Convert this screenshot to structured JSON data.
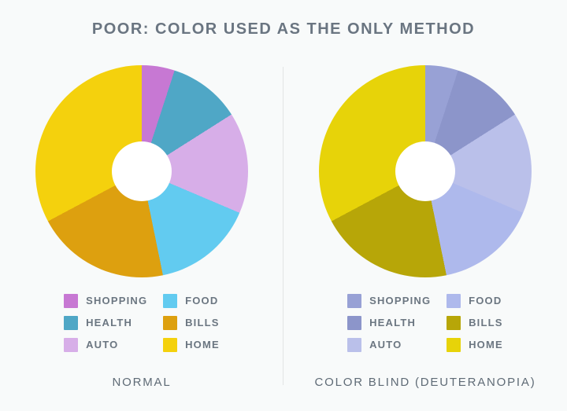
{
  "page": {
    "title": "POOR: COLOR USED AS THE ONLY METHOD",
    "background_color": "#f8fafa",
    "title_color": "#6a7581",
    "divider_color": "#e3e5e5"
  },
  "chart_data": [
    {
      "type": "pie",
      "variant": "donut",
      "caption": "NORMAL",
      "start_angle_deg": 0,
      "direction": "clockwise",
      "categories": [
        "SHOPPING",
        "HEALTH",
        "AUTO",
        "FOOD",
        "BILLS",
        "HOME"
      ],
      "values": [
        5,
        11,
        15.4,
        15.4,
        20.4,
        32.8
      ],
      "unit": "percent",
      "colors": [
        "#c778d3",
        "#4fa7c6",
        "#d7aee8",
        "#62cbf0",
        "#dda00f",
        "#f4d10d"
      ],
      "hole_color": "#ffffff",
      "legend_position": "bottom",
      "legend_columns": [
        [
          "SHOPPING",
          "HEALTH",
          "AUTO"
        ],
        [
          "FOOD",
          "BILLS",
          "HOME"
        ]
      ]
    },
    {
      "type": "pie",
      "variant": "donut",
      "caption": "COLOR BLIND (DEUTERANOPIA)",
      "start_angle_deg": 0,
      "direction": "clockwise",
      "categories": [
        "SHOPPING",
        "HEALTH",
        "AUTO",
        "FOOD",
        "BILLS",
        "HOME"
      ],
      "values": [
        5,
        11,
        15.4,
        15.4,
        20.4,
        32.8
      ],
      "unit": "percent",
      "colors": [
        "#98a1d5",
        "#8c95ca",
        "#bac0ea",
        "#aeb9ec",
        "#b7a608",
        "#e7d309"
      ],
      "hole_color": "#ffffff",
      "legend_position": "bottom",
      "legend_columns": [
        [
          "SHOPPING",
          "HEALTH",
          "AUTO"
        ],
        [
          "FOOD",
          "BILLS",
          "HOME"
        ]
      ]
    }
  ]
}
